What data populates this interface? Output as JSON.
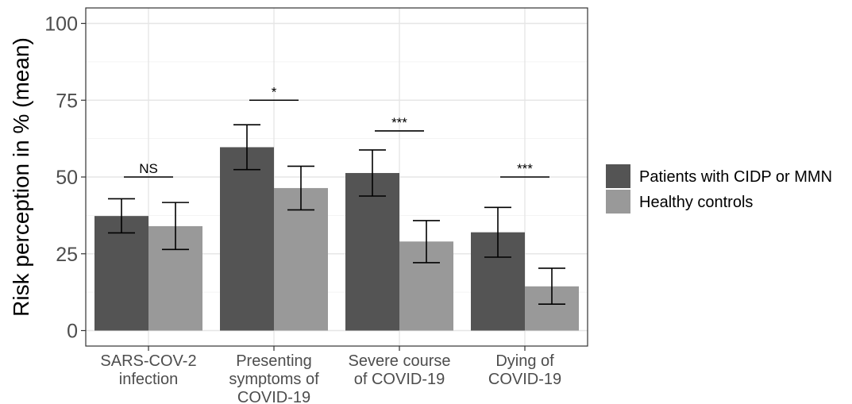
{
  "chart_data": {
    "type": "bar",
    "title": "",
    "xlabel": "",
    "ylabel": "Risk perception in % (mean)",
    "ylim": [
      0,
      100
    ],
    "yticks": [
      0,
      25,
      50,
      75,
      100
    ],
    "grid": true,
    "legend_position": "right",
    "categories": [
      [
        "SARS-COV-2",
        "infection"
      ],
      [
        "Presenting",
        "symptoms of",
        "COVID-19"
      ],
      [
        "Severe course",
        "of COVID-19"
      ],
      [
        "Dying of",
        "COVID-19"
      ]
    ],
    "series": [
      {
        "name": "Patients with CIDP or MMN",
        "color": "#545454",
        "values": [
          37.3,
          59.7,
          51.3,
          32
        ],
        "error_low": [
          31.8,
          52.4,
          43.8,
          23.9
        ],
        "error_high": [
          42.9,
          67,
          58.8,
          40.1
        ]
      },
      {
        "name": "Healthy controls",
        "color": "#999999",
        "values": [
          34,
          46.4,
          29,
          14.4
        ],
        "error_low": [
          26.4,
          39.3,
          22.1,
          8.6
        ],
        "error_high": [
          41.7,
          53.5,
          35.8,
          20.3
        ]
      }
    ],
    "annotations": [
      {
        "category_index": 0,
        "label": "NS",
        "y": 50
      },
      {
        "category_index": 1,
        "label": "*",
        "y": 75
      },
      {
        "category_index": 2,
        "label": "***",
        "y": 65
      },
      {
        "category_index": 3,
        "label": "***",
        "y": 50
      }
    ]
  }
}
